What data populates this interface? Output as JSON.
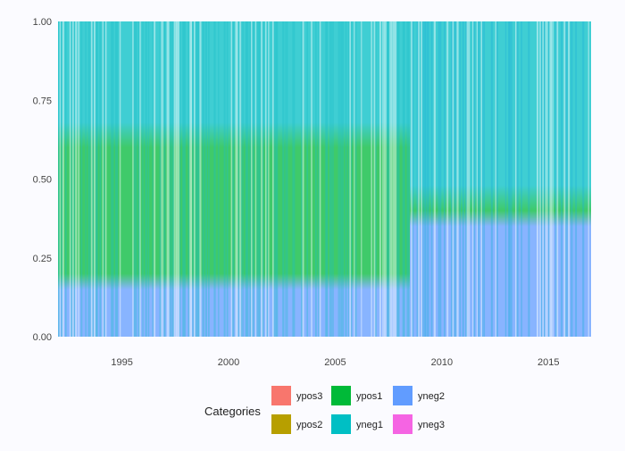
{
  "chart_data": {
    "type": "area",
    "title": "",
    "xlabel": "",
    "ylabel": "",
    "xlim": [
      1992,
      2017
    ],
    "ylim": [
      0,
      1
    ],
    "x_ticks": [
      1995,
      2000,
      2005,
      2010,
      2015
    ],
    "x_tick_labels": [
      "1995",
      "2000",
      "2005",
      "2010",
      "2015"
    ],
    "y_ticks": [
      0,
      0.25,
      0.5,
      0.75,
      1
    ],
    "y_tick_labels": [
      "0.00",
      "0.25",
      "0.50",
      "0.75",
      "1.00"
    ],
    "grid": false,
    "stacked": true,
    "normalized": true,
    "series": [
      {
        "name": "ypos3"
      },
      {
        "name": "ypos2"
      },
      {
        "name": "ypos1"
      },
      {
        "name": "yneg1"
      },
      {
        "name": "yneg2"
      },
      {
        "name": "yneg3"
      }
    ],
    "legend": {
      "title": "Categories",
      "placement": "bottom",
      "entries": [
        {
          "label": "ypos3",
          "color": "#f8766d"
        },
        {
          "label": "ypos2",
          "color": "#b79f00"
        },
        {
          "label": "ypos1",
          "color": "#00ba38"
        },
        {
          "label": "yneg1",
          "color": "#00bfc4"
        },
        {
          "label": "yneg2",
          "color": "#619cff"
        },
        {
          "label": "yneg3",
          "color": "#f564e3"
        }
      ]
    },
    "bands": [
      {
        "period": [
          1992,
          2008.5
        ],
        "yneg2_share": 0.15,
        "ypos1_share": 0.45,
        "yneg1_share": 0.4
      },
      {
        "period": [
          2008.5,
          2017
        ],
        "yneg2_share": 0.35,
        "ypos1_share": 0.05,
        "yneg1_share": 0.6
      }
    ]
  }
}
